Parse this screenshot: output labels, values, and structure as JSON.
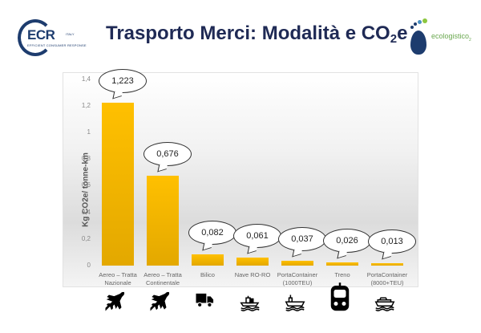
{
  "header": {
    "title_main": "Trasporto Merci: Modalità e CO",
    "title_sub": "2",
    "title_end": "e",
    "left_logo": {
      "name": "ECR",
      "country": "ITALY",
      "tagline": "EFFICIENT CONSUMER RESPONSE"
    },
    "right_logo": {
      "name": "ecologistico",
      "sub": "2"
    }
  },
  "colors": {
    "bar": "#ffc000",
    "title": "#1f2a55",
    "logo_blue": "#1d3c6e",
    "logo_green": "#6aa84f"
  },
  "chart_data": {
    "type": "bar",
    "title": "",
    "ylabel": "Kg CO2e/ tonne-km",
    "xlabel": "",
    "ylim": [
      0,
      1.4
    ],
    "yticks": [
      "0",
      "0,2",
      "0,4",
      "0,6",
      "0,8",
      "1",
      "1,2",
      "1,4"
    ],
    "grid": false,
    "categories": [
      "Aereo – Tratta Nazionale",
      "Aereo – Tratta Continentale",
      "Bilico",
      "Nave RO-RO",
      "PortaContainer (1000TEU)",
      "Treno",
      "PortaContainer (8000+TEU)"
    ],
    "category_lines": [
      [
        "Aereo – Tratta",
        "Nazionale"
      ],
      [
        "Aereo – Tratta",
        "Continentale"
      ],
      [
        "Bilico",
        ""
      ],
      [
        "Nave RO-RO",
        ""
      ],
      [
        "PortaContainer",
        "(1000TEU)"
      ],
      [
        "Treno",
        ""
      ],
      [
        "PortaContainer",
        "(8000+TEU)"
      ]
    ],
    "values": [
      1.223,
      0.676,
      0.082,
      0.061,
      0.037,
      0.026,
      0.013
    ],
    "value_labels": [
      "1,223",
      "0,676",
      "0,082",
      "0,061",
      "0,037",
      "0,026",
      "0,013"
    ]
  },
  "icons": [
    "airplane-icon",
    "airplane-icon",
    "truck-icon",
    "ro-ro-ship-icon",
    "container-ship-icon",
    "train-icon",
    "large-container-ship-icon"
  ]
}
